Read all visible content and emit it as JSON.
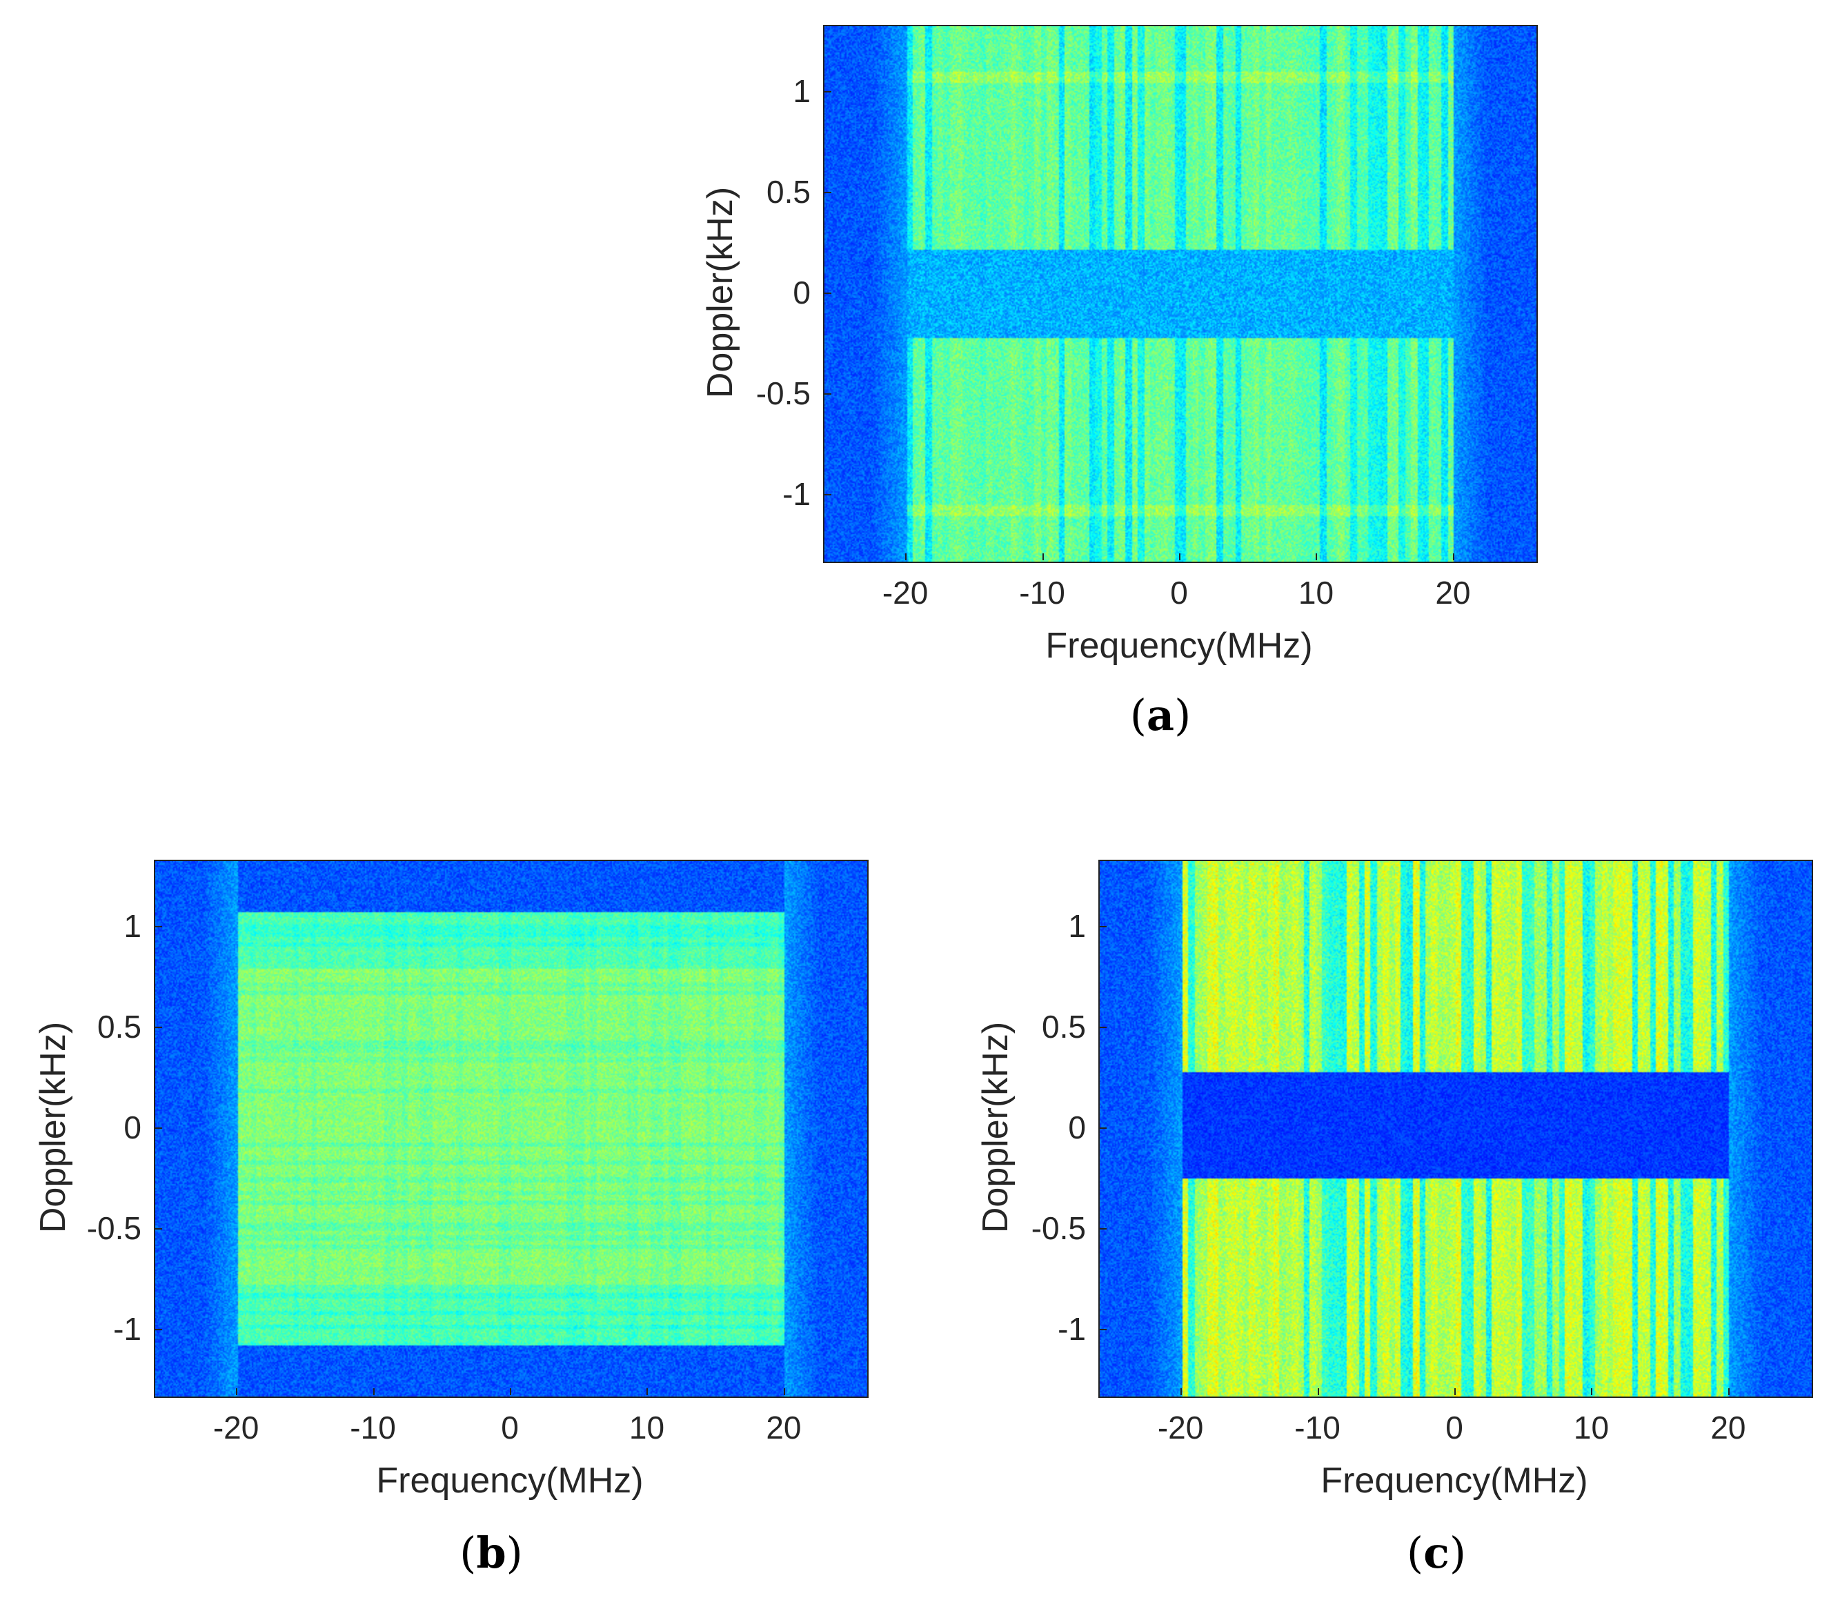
{
  "chart_data": [
    {
      "type": "heatmap",
      "panel_label": "a",
      "caption_open": "(",
      "caption_close": ")",
      "xlabel": "Frequency(MHz)",
      "ylabel": "Doppler(kHz)",
      "xlim": [
        -26,
        26
      ],
      "ylim": [
        -1.33,
        1.33
      ],
      "x_ticks": [
        -20,
        -10,
        0,
        10,
        20
      ],
      "x_tick_labels": [
        "-20",
        "-10",
        "0",
        "10",
        "20"
      ],
      "y_ticks": [
        1,
        0.5,
        0,
        -0.5,
        -1
      ],
      "y_tick_labels": [
        "1",
        "0.5",
        "0",
        "-0.5",
        "-1"
      ],
      "signal_band_mhz": [
        -20,
        20
      ],
      "doppler_notch_khz": [
        -0.22,
        0.22
      ],
      "horizontal_edges_khz": [
        1.08,
        -1.08
      ],
      "pattern": "vertical stripes across band, dark notch near zero Doppler",
      "colormap": "jet",
      "intensity": 0.55
    },
    {
      "type": "heatmap",
      "panel_label": "b",
      "caption_open": "(",
      "caption_close": ")",
      "xlabel": "Frequency(MHz)",
      "ylabel": "Doppler(kHz)",
      "xlim": [
        -26,
        26
      ],
      "ylim": [
        -1.33,
        1.33
      ],
      "x_ticks": [
        -20,
        -10,
        0,
        10,
        20
      ],
      "x_tick_labels": [
        "-20",
        "-10",
        "0",
        "10",
        "20"
      ],
      "y_ticks": [
        1,
        0.5,
        0,
        -0.5,
        -1
      ],
      "y_tick_labels": [
        "1",
        "0.5",
        "0",
        "-0.5",
        "-1"
      ],
      "signal_band_mhz": [
        -20,
        20
      ],
      "doppler_extent_khz": [
        -1.08,
        1.08
      ],
      "inner_band_khz": [
        -0.78,
        0.8
      ],
      "pattern": "uniform rectangular block with fine grid texture",
      "colormap": "jet",
      "intensity": 0.6
    },
    {
      "type": "heatmap",
      "panel_label": "c",
      "caption_open": "(",
      "caption_close": ")",
      "xlabel": "Frequency(MHz)",
      "ylabel": "Doppler(kHz)",
      "xlim": [
        -26,
        26
      ],
      "ylim": [
        -1.33,
        1.33
      ],
      "x_ticks": [
        -20,
        -10,
        0,
        10,
        20
      ],
      "x_tick_labels": [
        "-20",
        "-10",
        "0",
        "10",
        "20"
      ],
      "y_ticks": [
        1,
        0.5,
        0,
        -0.5,
        -1
      ],
      "y_tick_labels": [
        "1",
        "0.5",
        "0",
        "-0.5",
        "-1"
      ],
      "signal_band_mhz": [
        -20,
        20
      ],
      "doppler_notch_khz": [
        -0.25,
        0.28
      ],
      "pattern": "strong vertical stripes, wide dark notch near zero Doppler",
      "colormap": "jet",
      "intensity": 0.85
    }
  ],
  "colors": {
    "background_low": "#0a1fa0",
    "axis": "#222222",
    "text": "#262626"
  }
}
